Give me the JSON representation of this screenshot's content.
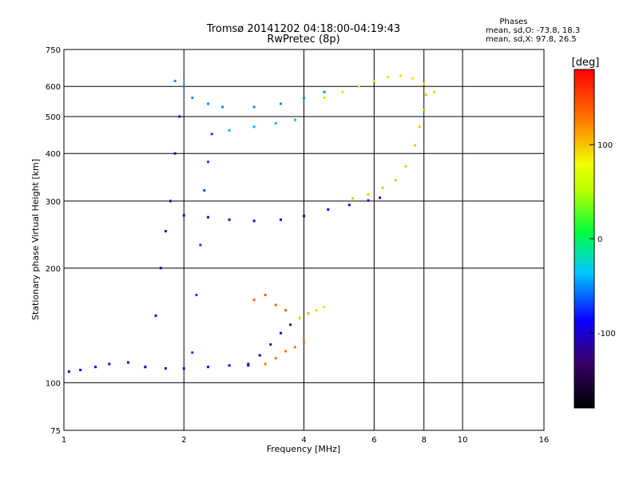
{
  "chart_data": {
    "type": "scatter",
    "title": "Tromsø 20141202 04:18:00-04:19:43",
    "subtitle": "RwPretec (8p)",
    "xlabel": "Frequency [MHz]",
    "ylabel": "Stationary phase Virtual Height [km]",
    "x_scale": "log",
    "y_scale": "log",
    "xlim": [
      1,
      16
    ],
    "ylim": [
      75,
      750
    ],
    "xticks": [
      1,
      2,
      4,
      6,
      8,
      10,
      16
    ],
    "yticks": [
      75,
      100,
      200,
      300,
      400,
      500,
      600,
      750
    ],
    "grid": true,
    "phases_box": {
      "title": "Phases",
      "line_o": "mean, sd,O: -73.8, 18.3",
      "line_x": "mean, sd,X:  97.8, 26.5"
    },
    "colorbar": {
      "label": "[deg]",
      "range": [
        -180,
        180
      ],
      "ticks": [
        -100,
        0,
        100
      ],
      "colors": [
        "#000000",
        "#3b0070",
        "#0a00ff",
        "#00c8ff",
        "#00ff3c",
        "#f0ff00",
        "#ff7a00",
        "#ff0000"
      ]
    },
    "traces": [
      {
        "name": "",
        "points": [
          [
            1.03,
            107
          ],
          [
            1.1,
            108
          ],
          [
            1.2,
            110
          ],
          [
            1.3,
            112
          ],
          [
            1.45,
            113
          ],
          [
            1.6,
            110
          ],
          [
            1.8,
            109
          ],
          [
            2.0,
            109
          ],
          [
            2.3,
            110
          ],
          [
            2.6,
            111
          ],
          [
            2.9,
            111
          ]
        ],
        "phase": -80
      },
      {
        "name": "",
        "points": [
          [
            2.0,
            275
          ],
          [
            2.3,
            272
          ],
          [
            2.6,
            268
          ],
          [
            3.0,
            266
          ],
          [
            3.5,
            268
          ],
          [
            4.0,
            274
          ],
          [
            4.6,
            285
          ],
          [
            5.2,
            293
          ],
          [
            5.8,
            301
          ],
          [
            6.2,
            306
          ]
        ],
        "phase": -90
      },
      {
        "name": "",
        "points": [
          [
            5.3,
            305
          ],
          [
            5.8,
            312
          ],
          [
            6.3,
            325
          ],
          [
            6.8,
            340
          ],
          [
            7.2,
            370
          ],
          [
            7.6,
            420
          ],
          [
            7.8,
            470
          ],
          [
            8.0,
            520
          ],
          [
            8.1,
            570
          ]
        ],
        "phase": 100
      },
      {
        "name": "",
        "points": [
          [
            4.5,
            560
          ],
          [
            5.0,
            580
          ],
          [
            5.5,
            600
          ],
          [
            6.0,
            620
          ],
          [
            6.5,
            635
          ],
          [
            7.0,
            640
          ],
          [
            7.5,
            630
          ],
          [
            8.0,
            610
          ],
          [
            8.5,
            580
          ]
        ],
        "phase": 90
      },
      {
        "name": "",
        "points": [
          [
            1.9,
            620
          ],
          [
            2.0,
            600
          ],
          [
            2.1,
            560
          ],
          [
            2.3,
            540
          ],
          [
            2.5,
            530
          ],
          [
            3.0,
            530
          ],
          [
            3.5,
            540
          ],
          [
            4.0,
            560
          ],
          [
            4.5,
            580
          ]
        ],
        "phase": -40
      },
      {
        "name": "",
        "points": [
          [
            2.6,
            460
          ],
          [
            3.0,
            470
          ],
          [
            3.4,
            480
          ],
          [
            3.8,
            490
          ]
        ],
        "phase": -30
      },
      {
        "name": "",
        "points": [
          [
            1.6,
            110
          ],
          [
            1.7,
            150
          ],
          [
            1.75,
            200
          ],
          [
            1.8,
            250
          ],
          [
            1.85,
            300
          ],
          [
            1.9,
            400
          ],
          [
            1.95,
            500
          ]
        ],
        "phase": -100
      },
      {
        "name": "",
        "points": [
          [
            2.1,
            120
          ],
          [
            2.15,
            170
          ],
          [
            2.2,
            230
          ],
          [
            2.25,
            320
          ],
          [
            2.3,
            380
          ],
          [
            2.35,
            450
          ]
        ],
        "phase": -60
      },
      {
        "name": "",
        "points": [
          [
            2.9,
            112
          ],
          [
            3.1,
            118
          ],
          [
            3.3,
            126
          ],
          [
            3.5,
            135
          ],
          [
            3.7,
            142
          ],
          [
            3.9,
            148
          ],
          [
            4.1,
            152
          ]
        ],
        "phase": -110
      },
      {
        "name": "",
        "points": [
          [
            3.2,
            112
          ],
          [
            3.4,
            116
          ],
          [
            3.6,
            121
          ],
          [
            3.8,
            124
          ],
          [
            4.0,
            128
          ]
        ],
        "phase": 130
      },
      {
        "name": "",
        "points": [
          [
            3.9,
            148
          ],
          [
            4.1,
            152
          ],
          [
            4.3,
            155
          ],
          [
            4.5,
            158
          ]
        ],
        "phase": 90
      },
      {
        "name": "",
        "points": [
          [
            3.0,
            165
          ],
          [
            3.2,
            170
          ],
          [
            3.4,
            160
          ],
          [
            3.6,
            155
          ]
        ],
        "phase": 140
      }
    ]
  }
}
